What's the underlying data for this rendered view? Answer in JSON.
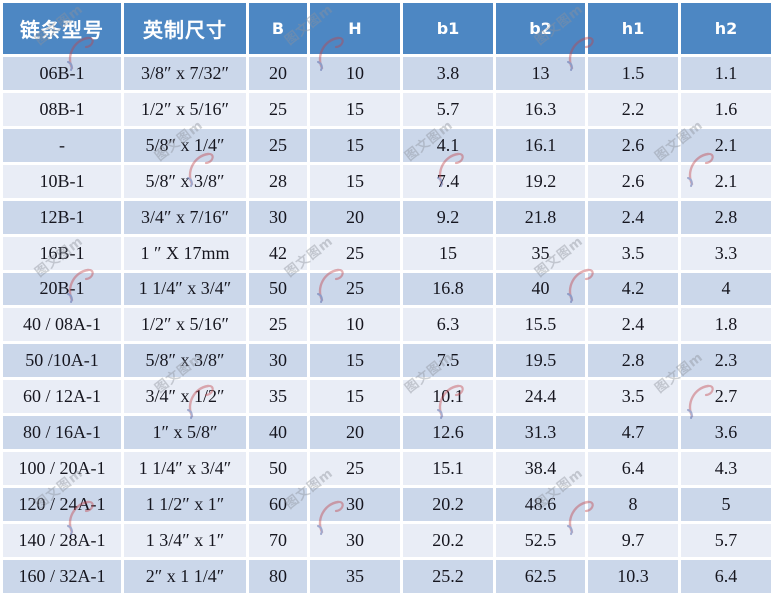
{
  "chart_data": {
    "type": "table",
    "columns": [
      "链条型号",
      "英制尺寸",
      "B",
      "H",
      "b1",
      "b2",
      "h1",
      "h2"
    ],
    "rows": [
      [
        "06B-1",
        "3/8″ x 7/32″",
        "20",
        "10",
        "3.8",
        "13",
        "1.5",
        "1.1"
      ],
      [
        "08B-1",
        "1/2″ x 5/16″",
        "25",
        "15",
        "5.7",
        "16.3",
        "2.2",
        "1.6"
      ],
      [
        "-",
        "5/8″ x 1/4″",
        "25",
        "15",
        "4.1",
        "16.1",
        "2.6",
        "2.1"
      ],
      [
        "10B-1",
        "5/8″ x 3/8″",
        "28",
        "15",
        "7.4",
        "19.2",
        "2.6",
        "2.1"
      ],
      [
        "12B-1",
        "3/4″ x 7/16″",
        "30",
        "20",
        "9.2",
        "21.8",
        "2.4",
        "2.8"
      ],
      [
        "16B-1",
        "1 ″ X 17mm",
        "42",
        "25",
        "15",
        "35",
        "3.5",
        "3.3"
      ],
      [
        "20B-1",
        "1 1/4″ x 3/4″",
        "50",
        "25",
        "16.8",
        "40",
        "4.2",
        "4"
      ],
      [
        "40 / 08A-1",
        "1/2″ x 5/16″",
        "25",
        "10",
        "6.3",
        "15.5",
        "2.4",
        "1.8"
      ],
      [
        "50 /10A-1",
        "5/8″ x 3/8″",
        "30",
        "15",
        "7.5",
        "19.5",
        "2.8",
        "2.3"
      ],
      [
        "60 / 12A-1",
        "3/4″ x 1/2″",
        "35",
        "15",
        "10.1",
        "24.4",
        "3.5",
        "2.7"
      ],
      [
        "80 / 16A-1",
        "1″ x 5/8″",
        "40",
        "20",
        "12.6",
        "31.3",
        "4.7",
        "3.6"
      ],
      [
        "100 / 20A-1",
        "1 1/4″ x 3/4″",
        "50",
        "25",
        "15.1",
        "38.4",
        "6.4",
        "4.3"
      ],
      [
        "120 / 24A-1",
        "1 1/2″ x 1″",
        "60",
        "30",
        "20.2",
        "48.6",
        "8",
        "5"
      ],
      [
        "140 / 28A-1",
        "1 3/4″ x 1″",
        "70",
        "30",
        "20.2",
        "52.5",
        "9.7",
        "5.7"
      ],
      [
        "160 / 32A-1",
        "2″ x 1 1/4″",
        "80",
        "35",
        "25.2",
        "62.5",
        "10.3",
        "6.4"
      ]
    ],
    "title": "",
    "layout": "striped table, blue header row, white cell gaps"
  },
  "watermark": {
    "text": "图文图m"
  },
  "colors": {
    "header_bg": "#4d87c3",
    "header_text": "#ffffff",
    "row_dark": "#cbd7ea",
    "row_light": "#e9edf6",
    "gap": "#ffffff",
    "cell_text": "#16161f",
    "watermark_gray": "#8d929b",
    "watermark_red": "#c2444a",
    "watermark_blue": "#3c4a96"
  }
}
